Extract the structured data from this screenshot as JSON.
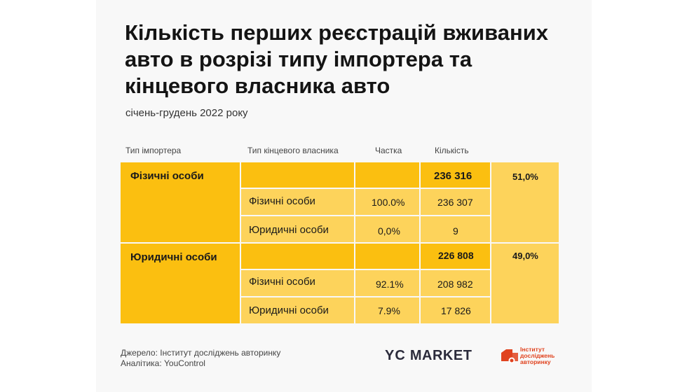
{
  "title": "Кількість перших реєстрацій вживаних авто в розрізі типу імпортера та кінцевого власника авто",
  "subtitle": "січень-грудень 2022 року",
  "columns": {
    "importer": "Тип імпортера",
    "owner": "Тип кінцевого власника",
    "share": "Частка",
    "count": "Кількість"
  },
  "groups": [
    {
      "importer": "Фізичні особи",
      "total": "236  316",
      "percent": "51,0%",
      "rows": [
        {
          "owner": "Фізичні особи",
          "share": "100.0%",
          "count": "236 307"
        },
        {
          "owner": "Юридичні особи",
          "share": "0,0%",
          "count": "9"
        }
      ]
    },
    {
      "importer": "Юридичні особи",
      "total": "226 808",
      "percent": "49,0%",
      "rows": [
        {
          "owner": "Фізичні особи",
          "share": "92.1%",
          "count": "208 982"
        },
        {
          "owner": "Юридичні особи",
          "share": "7.9%",
          "count": "17 826"
        }
      ]
    }
  ],
  "footer": {
    "source": "Джерело: Інститут досліджень авторинку",
    "analytics": "Аналітика: YouControl"
  },
  "logos": {
    "yc_market_a": "YC",
    "yc_market_b": "MARKET",
    "institute_line1": "Інститут",
    "institute_line2": "досліджень",
    "institute_line3": "авторинку"
  },
  "colors": {
    "dark_yellow": "#fbbf10",
    "light_yellow": "#fdd35b",
    "logo_orange": "#e0431f"
  }
}
